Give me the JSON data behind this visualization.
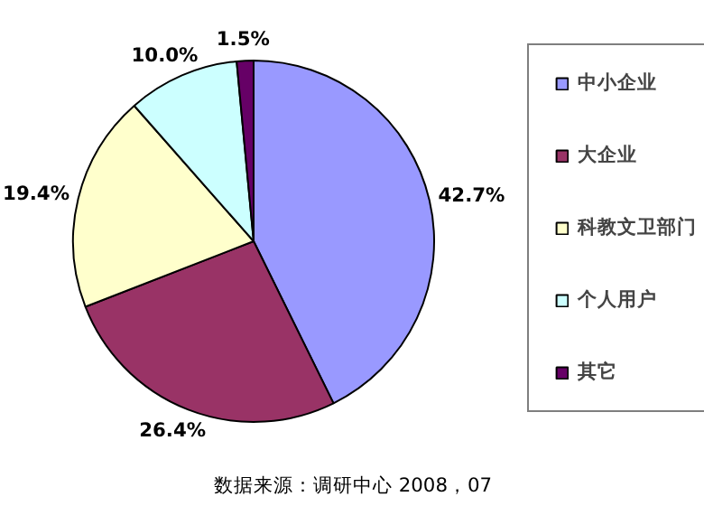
{
  "chart_data": {
    "type": "pie",
    "categories": [
      "中小企业",
      "大企业",
      "科教文卫部门",
      "个人用户",
      "其它"
    ],
    "values": [
      42.7,
      26.4,
      19.4,
      10.0,
      1.5
    ],
    "colors": [
      "#9999ff",
      "#993366",
      "#ffffcc",
      "#ccffff",
      "#660066"
    ],
    "value_labels": [
      "42.7%",
      "26.4%",
      "19.4%",
      "10.0%",
      "1.5%"
    ],
    "legend": "right",
    "annotations": [
      "数据来源：调研中心 2008，07"
    ]
  }
}
